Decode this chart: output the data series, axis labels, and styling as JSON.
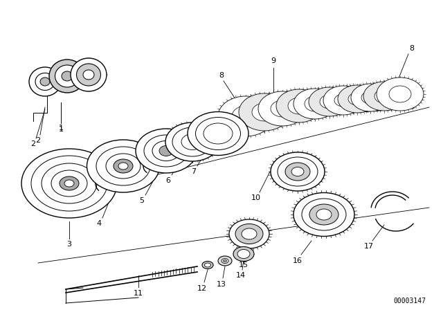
{
  "bg_color": "#ffffff",
  "part_number": "00003147",
  "figsize": [
    6.4,
    4.48
  ],
  "dpi": 100,
  "line_color": "#000000",
  "gray_light": "#cccccc",
  "gray_mid": "#aaaaaa",
  "gray_dark": "#888888"
}
